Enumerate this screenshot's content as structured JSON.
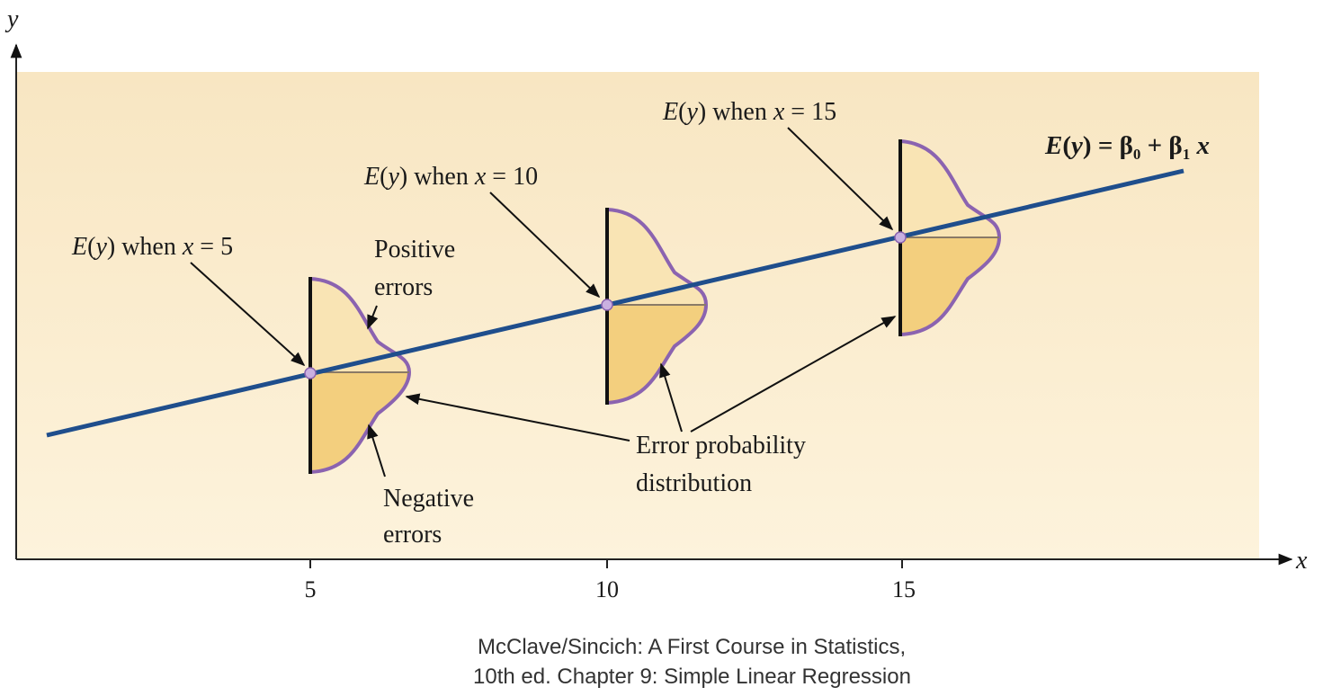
{
  "axes": {
    "y_label": "y",
    "x_label": "x",
    "x_ticks": [
      "5",
      "10",
      "15"
    ]
  },
  "regression_line": {
    "label_E": "E",
    "label_y": "y",
    "label_rest": " = β",
    "label_sub0": "0",
    "label_plus": " + β",
    "label_sub1": "1",
    "label_x": "x"
  },
  "annotations": {
    "ey_x5": {
      "E": "E",
      "y": "y",
      "when": " when ",
      "x": "x",
      "eq": " = 5"
    },
    "ey_x10": {
      "E": "E",
      "y": "y",
      "when": " when ",
      "x": "x",
      "eq": " = 10"
    },
    "ey_x15": {
      "E": "E",
      "y": "y",
      "when": " when ",
      "x": "x",
      "eq": " = 15"
    },
    "positive_errors": [
      "Positive",
      "errors"
    ],
    "negative_errors": [
      "Negative",
      "errors"
    ],
    "error_distribution": [
      "Error probability",
      "distribution"
    ]
  },
  "caption": [
    "McClave/Sincich: A First Course in Statistics,",
    "10th ed. Chapter 9: Simple Linear Regression"
  ],
  "colors": {
    "panel": "#fbeccc",
    "line": "#1f4e8c",
    "curve": "#8b63b0",
    "fill_upper": "#f8e2b0",
    "fill_lower": "#f3d080",
    "point": "#c9b0e0"
  }
}
